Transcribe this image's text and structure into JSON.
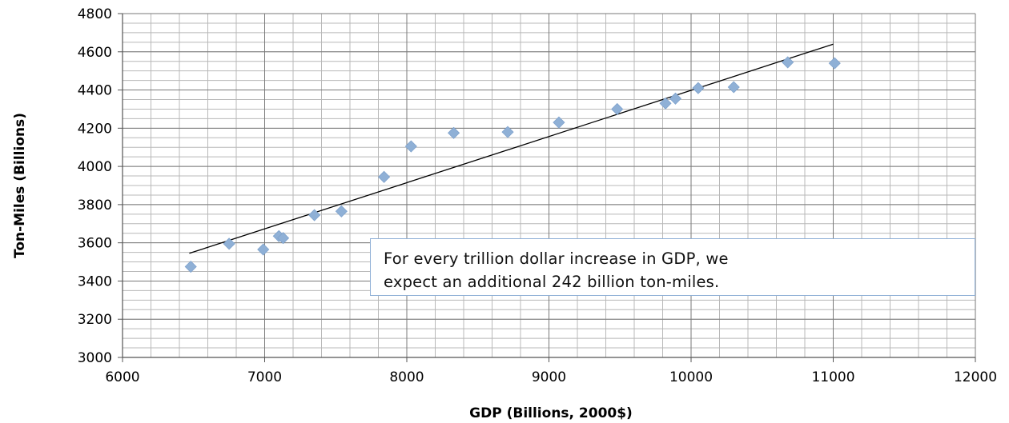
{
  "chart_data": {
    "type": "scatter",
    "xlabel": "GDP (Billions, 2000$)",
    "ylabel": "Ton-Miles (Billions)",
    "xlim": [
      6000,
      12000
    ],
    "ylim": [
      3000,
      4800
    ],
    "x_ticks": [
      6000,
      7000,
      8000,
      9000,
      10000,
      11000,
      12000
    ],
    "y_ticks": [
      3000,
      3200,
      3400,
      3600,
      3800,
      4000,
      4200,
      4400,
      4600,
      4800
    ],
    "x_minor_step": 200,
    "y_minor_step": 50,
    "grid": true,
    "marker_color": "#8fb0d6",
    "trendline_color": "#000000",
    "points": [
      {
        "x": 6480,
        "y": 3475
      },
      {
        "x": 6750,
        "y": 3595
      },
      {
        "x": 6990,
        "y": 3565
      },
      {
        "x": 7100,
        "y": 3635
      },
      {
        "x": 7130,
        "y": 3625
      },
      {
        "x": 7350,
        "y": 3745
      },
      {
        "x": 7540,
        "y": 3765
      },
      {
        "x": 7840,
        "y": 3945
      },
      {
        "x": 8030,
        "y": 4105
      },
      {
        "x": 8330,
        "y": 4175
      },
      {
        "x": 8710,
        "y": 4180
      },
      {
        "x": 9070,
        "y": 4230
      },
      {
        "x": 9480,
        "y": 4300
      },
      {
        "x": 9820,
        "y": 4330
      },
      {
        "x": 9890,
        "y": 4355
      },
      {
        "x": 10050,
        "y": 4410
      },
      {
        "x": 10300,
        "y": 4415
      },
      {
        "x": 10680,
        "y": 4545
      },
      {
        "x": 11010,
        "y": 4540
      }
    ],
    "trendline": {
      "x": [
        6470,
        11000
      ],
      "y": [
        3545,
        4640
      ]
    },
    "annotation": {
      "line1": "For every trillion dollar increase in GDP, we",
      "line2": "expect an additional 242 billion ton-miles."
    }
  }
}
